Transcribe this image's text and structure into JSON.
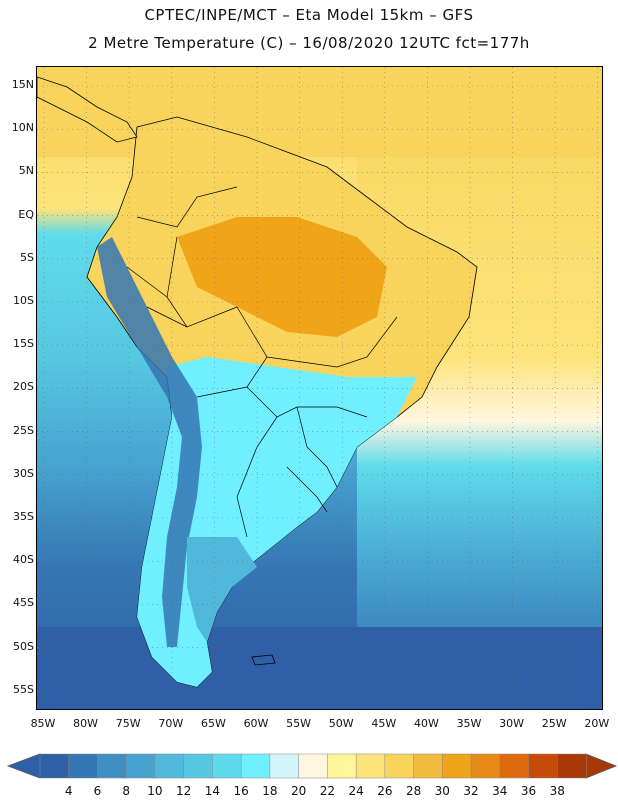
{
  "title_line1": "CPTEC/INPE/MCT –  Eta Model 15km – GFS",
  "title_line2": "2 Metre Temperature (C) – 16/08/2020 12UTC fct=177h",
  "lat_labels": [
    "15N",
    "10N",
    "5N",
    "EQ",
    "5S",
    "10S",
    "15S",
    "20S",
    "25S",
    "30S",
    "35S",
    "40S",
    "45S",
    "50S",
    "55S"
  ],
  "lon_labels": [
    "85W",
    "80W",
    "75W",
    "70W",
    "65W",
    "60W",
    "55W",
    "50W",
    "45W",
    "40W",
    "35W",
    "30W",
    "25W",
    "20W"
  ],
  "colorbar": {
    "values": [
      "4",
      "6",
      "8",
      "10",
      "12",
      "14",
      "16",
      "18",
      "20",
      "22",
      "24",
      "26",
      "28",
      "30",
      "32",
      "34",
      "36",
      "38"
    ],
    "colors": [
      "#2f5fa6",
      "#3576b4",
      "#3f8fc3",
      "#47a3cf",
      "#50b8da",
      "#57c8e2",
      "#5fdbeb",
      "#6fefff",
      "#d5f5fc",
      "#fff6e0",
      "#fff69a",
      "#fce47a",
      "#f8d45c",
      "#f0bc40",
      "#f0a418",
      "#e88a18",
      "#de6a10",
      "#c84a08",
      "#a83808"
    ]
  },
  "map_colors": {
    "ocean_deep": "#2f5fa6",
    "ocean_mid": "#3f8fc3",
    "ocean_light": "#50b8da",
    "ocean_warm": "#5fdbeb",
    "ocean_tropic": "#fce47a",
    "land_hot": "#f0a418",
    "land_warm": "#f8d45c",
    "land_cool": "#6fefff",
    "andes": "#3576b4",
    "border": "#000000"
  }
}
